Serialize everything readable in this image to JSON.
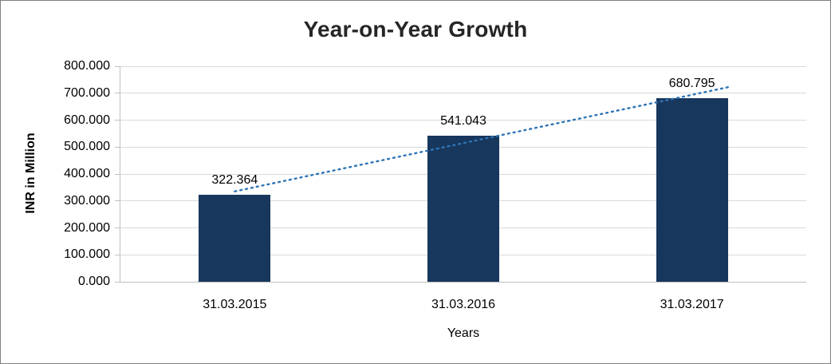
{
  "chart_data": {
    "type": "bar",
    "title": "Year-on-Year Growth",
    "categories": [
      "31.03.2015",
      "31.03.2016",
      "31.03.2017"
    ],
    "values": [
      322.364,
      541.043,
      680.795
    ],
    "value_labels": [
      "322.364",
      "541.043",
      "680.795"
    ],
    "xlabel": "Years",
    "ylabel": "INR in Million",
    "ylim": [
      0,
      800
    ],
    "ytick_step": 100,
    "ytick_labels": [
      "0.000",
      "100.000",
      "200.000",
      "300.000",
      "400.000",
      "500.000",
      "600.000",
      "700.000",
      "800.000"
    ],
    "grid": true,
    "legend": "none",
    "bar_color": "#17375D",
    "trendline": {
      "kind": "linear",
      "style": "dotted",
      "color": "#2E75B6"
    }
  }
}
